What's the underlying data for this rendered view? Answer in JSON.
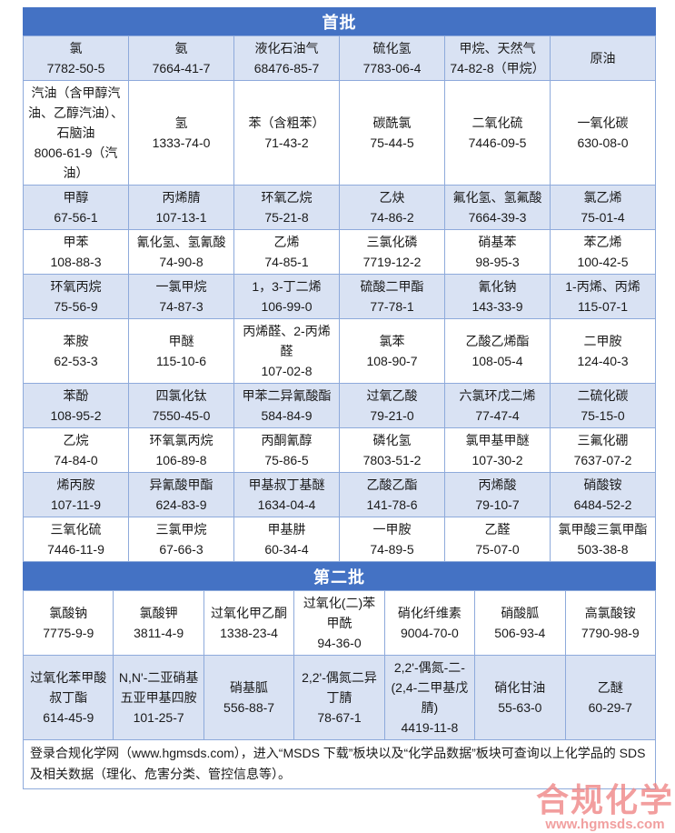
{
  "colors": {
    "header_blue": "#4472C4",
    "row_shade_blue": "#D9E2F3",
    "grid_border": "#8EAADB",
    "text": "#1a1a1a",
    "watermark_pink": "#EF8484"
  },
  "sections": {
    "batch1": {
      "title": "首批",
      "columns": 6,
      "rows": [
        [
          {
            "name": "氯",
            "cas": "7782-50-5"
          },
          {
            "name": "氨",
            "cas": "7664-41-7"
          },
          {
            "name": "液化石油气",
            "cas": "68476-85-7"
          },
          {
            "name": "硫化氢",
            "cas": "7783-06-4"
          },
          {
            "name": "甲烷、天然气",
            "cas": "74-82-8（甲烷）"
          },
          {
            "name": "原油",
            "cas": ""
          }
        ],
        [
          {
            "name": "汽油（含甲醇汽油、乙醇汽油）、石脑油",
            "cas": "8006-61-9（汽油）"
          },
          {
            "name": "氢",
            "cas": "1333-74-0"
          },
          {
            "name": "苯（含粗苯）",
            "cas": "71-43-2"
          },
          {
            "name": "碳酰氯",
            "cas": "75-44-5"
          },
          {
            "name": "二氧化硫",
            "cas": "7446-09-5"
          },
          {
            "name": "一氧化碳",
            "cas": "630-08-0"
          }
        ],
        [
          {
            "name": "甲醇",
            "cas": "67-56-1"
          },
          {
            "name": "丙烯腈",
            "cas": "107-13-1"
          },
          {
            "name": "环氧乙烷",
            "cas": "75-21-8"
          },
          {
            "name": "乙炔",
            "cas": "74-86-2"
          },
          {
            "name": "氟化氢、氢氟酸",
            "cas": "7664-39-3"
          },
          {
            "name": "氯乙烯",
            "cas": "75-01-4"
          }
        ],
        [
          {
            "name": "甲苯",
            "cas": "108-88-3"
          },
          {
            "name": "氰化氢、氢氰酸",
            "cas": "74-90-8"
          },
          {
            "name": "乙烯",
            "cas": "74-85-1"
          },
          {
            "name": "三氯化磷",
            "cas": "7719-12-2"
          },
          {
            "name": "硝基苯",
            "cas": "98-95-3"
          },
          {
            "name": "苯乙烯",
            "cas": "100-42-5"
          }
        ],
        [
          {
            "name": "环氧丙烷",
            "cas": "75-56-9"
          },
          {
            "name": "一氯甲烷",
            "cas": "74-87-3"
          },
          {
            "name": "1，3-丁二烯",
            "cas": "106-99-0"
          },
          {
            "name": "硫酸二甲酯",
            "cas": "77-78-1"
          },
          {
            "name": "氰化钠",
            "cas": "143-33-9"
          },
          {
            "name": "1-丙烯、丙烯",
            "cas": "115-07-1"
          }
        ],
        [
          {
            "name": "苯胺",
            "cas": "62-53-3"
          },
          {
            "name": "甲醚",
            "cas": "115-10-6"
          },
          {
            "name": "丙烯醛、2-丙烯醛",
            "cas": "107-02-8"
          },
          {
            "name": "氯苯",
            "cas": "108-90-7"
          },
          {
            "name": "乙酸乙烯酯",
            "cas": "108-05-4"
          },
          {
            "name": "二甲胺",
            "cas": "124-40-3"
          }
        ],
        [
          {
            "name": "苯酚",
            "cas": "108-95-2"
          },
          {
            "name": "四氯化钛",
            "cas": "7550-45-0"
          },
          {
            "name": "甲苯二异氰酸酯",
            "cas": "584-84-9"
          },
          {
            "name": "过氧乙酸",
            "cas": "79-21-0"
          },
          {
            "name": "六氯环戊二烯",
            "cas": "77-47-4"
          },
          {
            "name": "二硫化碳",
            "cas": "75-15-0"
          }
        ],
        [
          {
            "name": "乙烷",
            "cas": "74-84-0"
          },
          {
            "name": "环氧氯丙烷",
            "cas": "106-89-8"
          },
          {
            "name": "丙酮氰醇",
            "cas": "75-86-5"
          },
          {
            "name": "磷化氢",
            "cas": "7803-51-2"
          },
          {
            "name": "氯甲基甲醚",
            "cas": "107-30-2"
          },
          {
            "name": "三氟化硼",
            "cas": "7637-07-2"
          }
        ],
        [
          {
            "name": "烯丙胺",
            "cas": "107-11-9"
          },
          {
            "name": "异氰酸甲酯",
            "cas": "624-83-9"
          },
          {
            "name": "甲基叔丁基醚",
            "cas": "1634-04-4"
          },
          {
            "name": "乙酸乙酯",
            "cas": "141-78-6"
          },
          {
            "name": "丙烯酸",
            "cas": "79-10-7"
          },
          {
            "name": "硝酸铵",
            "cas": "6484-52-2"
          }
        ],
        [
          {
            "name": "三氧化硫",
            "cas": "7446-11-9"
          },
          {
            "name": "三氯甲烷",
            "cas": "67-66-3"
          },
          {
            "name": "甲基肼",
            "cas": "60-34-4"
          },
          {
            "name": "一甲胺",
            "cas": "74-89-5"
          },
          {
            "name": "乙醛",
            "cas": "75-07-0"
          },
          {
            "name": "氯甲酸三氯甲酯",
            "cas": "503-38-8"
          }
        ]
      ]
    },
    "batch2": {
      "title": "第二批",
      "columns": 7,
      "rows": [
        [
          {
            "name": "氯酸钠",
            "cas": "7775-9-9"
          },
          {
            "name": "氯酸钾",
            "cas": "3811-4-9"
          },
          {
            "name": "过氧化甲乙酮",
            "cas": "1338-23-4"
          },
          {
            "name": "过氧化(二)苯甲酰",
            "cas": "94-36-0"
          },
          {
            "name": "硝化纤维素",
            "cas": "9004-70-0"
          },
          {
            "name": "硝酸胍",
            "cas": "506-93-4"
          },
          {
            "name": "高氯酸铵",
            "cas": "7790-98-9"
          }
        ],
        [
          {
            "name": "过氧化苯甲酸叔丁酯",
            "cas": "614-45-9"
          },
          {
            "name": "N,N'-二亚硝基五亚甲基四胺",
            "cas": "101-25-7"
          },
          {
            "name": "硝基胍",
            "cas": "556-88-7"
          },
          {
            "name": "2,2'-偶氮二异丁腈",
            "cas": "78-67-1"
          },
          {
            "name": "2,2'-偶氮-二-(2,4-二甲基戊腈)",
            "cas": "4419-11-8"
          },
          {
            "name": "硝化甘油",
            "cas": "55-63-0"
          },
          {
            "name": "乙醚",
            "cas": "60-29-7"
          }
        ]
      ]
    }
  },
  "footer": {
    "text": "登录合规化学网（www.hgmsds.com），进入“MSDS 下载”板块以及“化学品数据”板块可查询以上化学品的 SDS 及相关数据（理化、危害分类、管控信息等）。"
  },
  "watermark": {
    "title": "合规化学",
    "url": "www.hgmsds.com"
  }
}
